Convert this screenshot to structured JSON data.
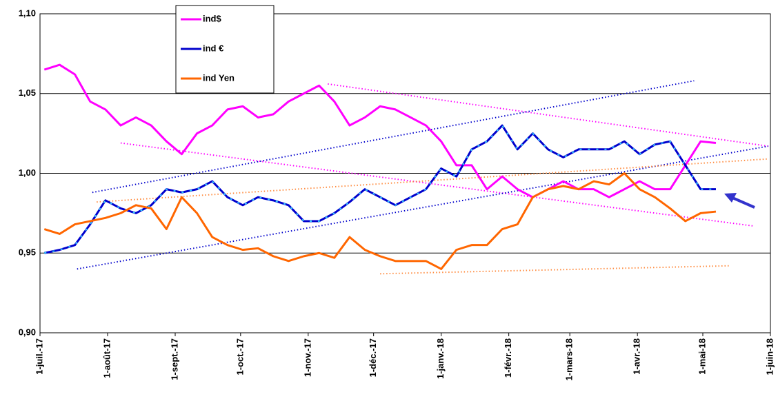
{
  "chart_data": {
    "type": "line",
    "x": [
      "2017-07-03",
      "2017-07-10",
      "2017-07-17",
      "2017-07-24",
      "2017-07-31",
      "2017-08-07",
      "2017-08-14",
      "2017-08-21",
      "2017-08-28",
      "2017-09-04",
      "2017-09-11",
      "2017-09-18",
      "2017-09-25",
      "2017-10-02",
      "2017-10-09",
      "2017-10-16",
      "2017-10-23",
      "2017-10-30",
      "2017-11-06",
      "2017-11-13",
      "2017-11-20",
      "2017-11-27",
      "2017-12-04",
      "2017-12-11",
      "2017-12-18",
      "2017-12-25",
      "2018-01-01",
      "2018-01-08",
      "2018-01-15",
      "2018-01-22",
      "2018-01-29",
      "2018-02-05",
      "2018-02-12",
      "2018-02-19",
      "2018-02-26",
      "2018-03-05",
      "2018-03-12",
      "2018-03-19",
      "2018-03-26",
      "2018-04-02",
      "2018-04-09",
      "2018-04-16",
      "2018-04-23",
      "2018-04-30",
      "2018-05-07"
    ],
    "series": [
      {
        "name": "ind$",
        "color": "#ff00ff",
        "values": [
          1.065,
          1.068,
          1.062,
          1.045,
          1.04,
          1.03,
          1.035,
          1.03,
          1.02,
          1.012,
          1.025,
          1.03,
          1.04,
          1.042,
          1.035,
          1.037,
          1.045,
          1.05,
          1.055,
          1.045,
          1.03,
          1.035,
          1.042,
          1.04,
          1.035,
          1.03,
          1.02,
          1.005,
          1.005,
          0.99,
          0.998,
          0.99,
          0.985,
          0.99,
          0.995,
          0.99,
          0.99,
          0.985,
          0.99,
          0.995,
          0.99,
          0.99,
          1.005,
          1.02,
          1.019
        ]
      },
      {
        "name": "ind €",
        "color": "#0000cc",
        "values": [
          0.95,
          0.952,
          0.955,
          0.968,
          0.983,
          0.978,
          0.975,
          0.98,
          0.99,
          0.988,
          0.99,
          0.995,
          0.985,
          0.98,
          0.985,
          0.983,
          0.98,
          0.97,
          0.97,
          0.975,
          0.982,
          0.99,
          0.985,
          0.98,
          0.985,
          0.99,
          1.003,
          0.998,
          1.015,
          1.02,
          1.03,
          1.015,
          1.025,
          1.015,
          1.01,
          1.015,
          1.015,
          1.015,
          1.02,
          1.012,
          1.018,
          1.02,
          1.005,
          0.99,
          0.99
        ]
      },
      {
        "name": "ind Yen",
        "color": "#ff6600",
        "values": [
          0.965,
          0.962,
          0.968,
          0.97,
          0.972,
          0.975,
          0.98,
          0.978,
          0.965,
          0.985,
          0.975,
          0.96,
          0.955,
          0.952,
          0.953,
          0.948,
          0.945,
          0.948,
          0.95,
          0.947,
          0.96,
          0.952,
          0.948,
          0.945,
          0.945,
          0.945,
          0.94,
          0.952,
          0.955,
          0.955,
          0.965,
          0.968,
          0.985,
          0.99,
          0.992,
          0.99,
          0.995,
          0.993,
          1.0,
          0.99,
          0.985,
          0.978,
          0.97,
          0.975,
          0.976
        ]
      }
    ],
    "trendlines": [
      {
        "color": "#ff00ff",
        "x": [
          "2017-11-10",
          "2018-05-31"
        ],
        "values": [
          1.056,
          1.017
        ]
      },
      {
        "color": "#ff00ff",
        "x": [
          "2017-08-07",
          "2018-05-24"
        ],
        "values": [
          1.019,
          0.967
        ]
      },
      {
        "color": "#0000cc",
        "x": [
          "2017-07-25",
          "2018-04-27"
        ],
        "values": [
          0.988,
          1.058
        ]
      },
      {
        "color": "#0000cc",
        "x": [
          "2017-07-18",
          "2018-05-31"
        ],
        "values": [
          0.94,
          1.017
        ]
      },
      {
        "color": "#ff8c40",
        "x": [
          "2017-07-27",
          "2018-05-31"
        ],
        "values": [
          0.982,
          1.009
        ]
      },
      {
        "color": "#ff8c40",
        "x": [
          "2017-12-04",
          "2018-05-13"
        ],
        "values": [
          0.937,
          0.942
        ]
      }
    ],
    "xlim": [
      "2017-07-01",
      "2018-06-01"
    ],
    "xticks": [
      {
        "value": "2017-07-01",
        "label": "1-juil.-17"
      },
      {
        "value": "2017-08-01",
        "label": "1-août-17"
      },
      {
        "value": "2017-09-01",
        "label": "1-sept.-17"
      },
      {
        "value": "2017-10-01",
        "label": "1-oct.-17"
      },
      {
        "value": "2017-11-01",
        "label": "1-nov.-17"
      },
      {
        "value": "2017-12-01",
        "label": "1-déc.-17"
      },
      {
        "value": "2018-01-01",
        "label": "1-janv.-18"
      },
      {
        "value": "2018-02-01",
        "label": "1-févr.-18"
      },
      {
        "value": "2018-03-01",
        "label": "1-mars-18"
      },
      {
        "value": "2018-04-01",
        "label": "1-avr.-18"
      },
      {
        "value": "2018-05-01",
        "label": "1-mai-18"
      },
      {
        "value": "2018-06-01",
        "label": "1-juin-18"
      }
    ],
    "ylim": [
      0.9,
      1.1
    ],
    "yticks": [
      {
        "value": 0.9,
        "label": "0,90"
      },
      {
        "value": 0.95,
        "label": "0,95"
      },
      {
        "value": 1.0,
        "label": "1,00"
      },
      {
        "value": 1.05,
        "label": "1,05"
      },
      {
        "value": 1.1,
        "label": "1,10"
      }
    ],
    "grid": true
  }
}
